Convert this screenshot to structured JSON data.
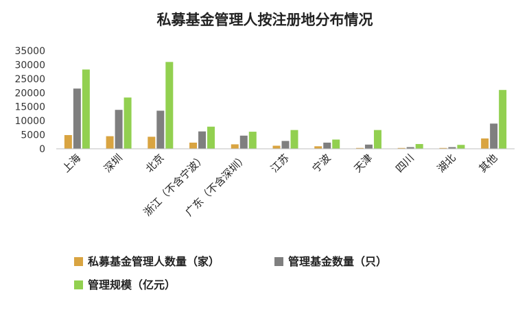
{
  "chart_data": {
    "type": "bar",
    "title": "私募基金管理人按注册地分布情况",
    "xlabel": "",
    "ylabel": "",
    "ylim": [
      0,
      35000
    ],
    "yticks": [
      "35000",
      "30000",
      "25000",
      "20000",
      "15000",
      "10000",
      "5000",
      "0"
    ],
    "grid": false,
    "legend_position": "bottom-left",
    "categories": [
      "上海",
      "深圳",
      "北京",
      "浙江（不含宁波）",
      "广东（不含深圳）",
      "江苏",
      "宁波",
      "天津",
      "四川",
      "湖北",
      "其他"
    ],
    "series": [
      {
        "name": "私募基金管理人数量（家）",
        "color": "#D9A441",
        "values": [
          4900,
          4500,
          4300,
          2200,
          1600,
          1100,
          900,
          300,
          300,
          300,
          3700
        ]
      },
      {
        "name": "管理基金数量（只）",
        "color": "#7F7F7F",
        "values": [
          21500,
          13900,
          13600,
          6200,
          4700,
          2800,
          2200,
          1500,
          600,
          600,
          9000
        ]
      },
      {
        "name": "管理规模（亿元）",
        "color": "#92D050",
        "values": [
          28300,
          18300,
          31000,
          7900,
          6100,
          6700,
          3300,
          6700,
          1700,
          1400,
          21000
        ]
      }
    ]
  }
}
